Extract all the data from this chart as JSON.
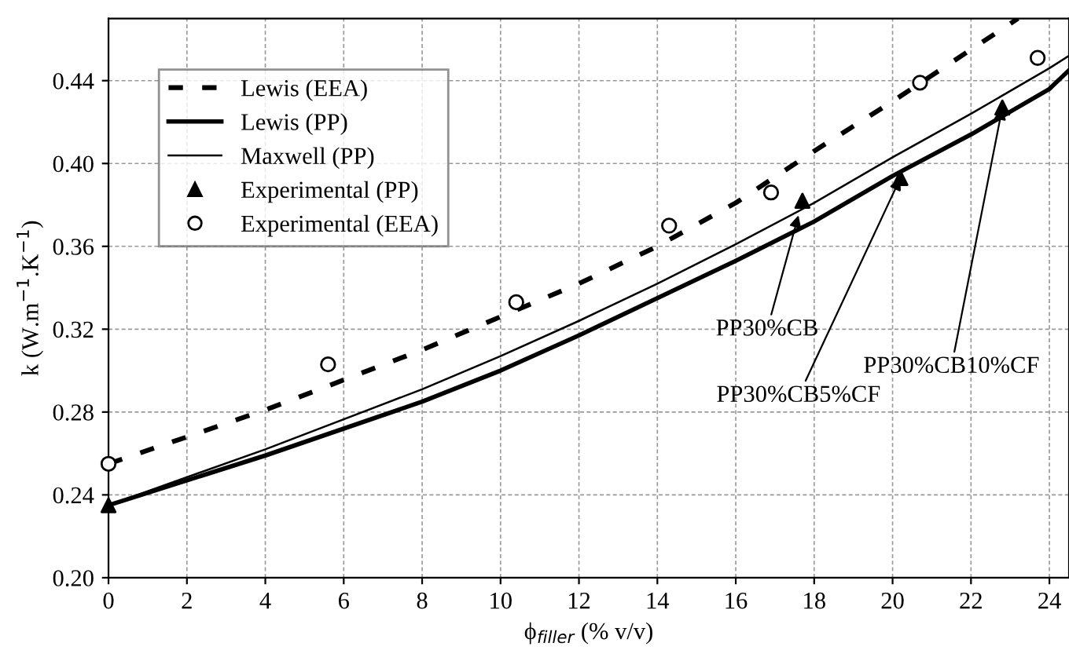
{
  "chart_data": {
    "type": "line",
    "xlabel": "ϕ$_{filler}$ (% v/v)",
    "ylabel": "k (W.m$^{−1}$.K$^{−1}$)",
    "xlim": [
      0,
      24.5
    ],
    "ylim": [
      0.2,
      0.47
    ],
    "xticks": [
      0,
      2,
      4,
      6,
      8,
      10,
      12,
      14,
      16,
      18,
      20,
      22,
      24
    ],
    "yticks": [
      {
        "value": 0.2,
        "label": "0.20"
      },
      0.24,
      0.28,
      0.32,
      0.36,
      {
        "value": 0.4,
        "label": "0.40"
      },
      0.44
    ],
    "grid": true,
    "legend": "top left",
    "series": [
      {
        "name": "Lewis (EEA)",
        "line_style": "dashed",
        "color": "#000000",
        "x": [
          0,
          4,
          8,
          12,
          14,
          16,
          18,
          20,
          22,
          23.2
        ],
        "values": [
          0.255,
          0.281,
          0.31,
          0.342,
          0.36,
          0.381,
          0.406,
          0.43,
          0.455,
          0.47
        ]
      },
      {
        "name": "Lewis (PP)",
        "line_style": "solid",
        "color": "#000000",
        "x": [
          0,
          4,
          8,
          10,
          12,
          14,
          16,
          18,
          20,
          22,
          24,
          24.5
        ],
        "values": [
          0.235,
          0.259,
          0.285,
          0.3,
          0.317,
          0.335,
          0.353,
          0.372,
          0.394,
          0.414,
          0.436,
          0.445
        ]
      },
      {
        "name": "Maxwell (PP)",
        "line_style": "solid",
        "color": "#000000",
        "x": [
          0,
          4,
          8,
          10,
          12,
          14,
          16,
          18,
          20,
          22,
          24,
          24.5
        ],
        "values": [
          0.235,
          0.262,
          0.291,
          0.307,
          0.324,
          0.342,
          0.361,
          0.381,
          0.403,
          0.424,
          0.446,
          0.452
        ]
      },
      {
        "name": "Experimental (PP)",
        "type": "scatter",
        "marker": "triangle",
        "color": "#000000",
        "x": [
          0,
          17.7,
          20.2,
          22.8
        ],
        "values": [
          0.235,
          0.382,
          0.393,
          0.427
        ]
      },
      {
        "name": "Experimental (EEA)",
        "type": "scatter",
        "marker": "circle",
        "color": "#000000",
        "x": [
          0,
          5.6,
          10.4,
          14.3,
          16.9,
          20.7,
          23.7
        ],
        "values": [
          0.255,
          0.303,
          0.333,
          0.37,
          0.386,
          0.439,
          0.451
        ]
      }
    ],
    "annotations": [
      {
        "text": "PP30%CB",
        "x": 17.6,
        "y": 0.375
      },
      {
        "text": "PP30%CB5%CF",
        "x": 20.2,
        "y": 0.393
      },
      {
        "text": "PP30%CB10%CF",
        "x": 22.8,
        "y": 0.427
      }
    ]
  }
}
